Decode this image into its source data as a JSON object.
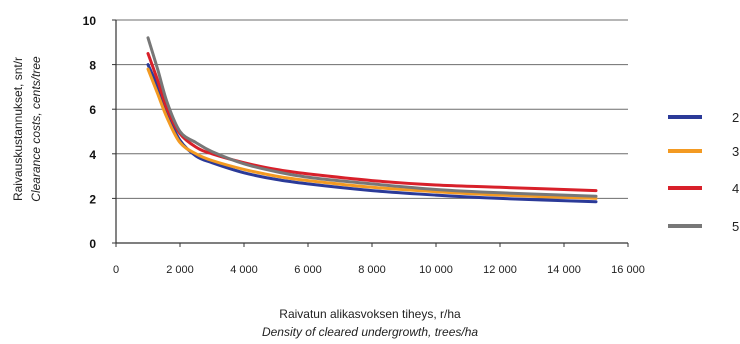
{
  "chart_data": {
    "type": "line",
    "xlabel": "Raivatun alikasvoksen tiheys, r/ha",
    "xlabel_en": "Density of cleared undergrowth, trees/ha",
    "ylabel": "Raivauskustannukset, snt/r",
    "ylabel_en": "Clearance costs, cents/tree",
    "xlim": [
      0,
      16000
    ],
    "ylim": [
      0,
      10
    ],
    "x_ticks": [
      "0",
      "2 000",
      "4 000",
      "6 000",
      "8 000",
      "10 000",
      "12 000",
      "14 000",
      "16 000"
    ],
    "y_ticks": [
      "0",
      "2",
      "4",
      "6",
      "8",
      "10"
    ],
    "grid": "horizontal",
    "legend_position": "right",
    "series": [
      {
        "name": "2",
        "color": "#2b3a98",
        "x": [
          1000,
          1300,
          1600,
          2000,
          2500,
          3000,
          4000,
          5000,
          6000,
          8000,
          10000,
          12000,
          15000
        ],
        "y": [
          8.0,
          7.0,
          5.8,
          4.6,
          3.9,
          3.6,
          3.15,
          2.85,
          2.65,
          2.35,
          2.15,
          2.0,
          1.85
        ]
      },
      {
        "name": "3",
        "color": "#f39a22",
        "x": [
          1000,
          1300,
          1600,
          2000,
          2500,
          3000,
          4000,
          5000,
          6000,
          8000,
          10000,
          12000,
          15000
        ],
        "y": [
          7.8,
          6.7,
          5.6,
          4.5,
          4.0,
          3.7,
          3.3,
          3.0,
          2.8,
          2.5,
          2.3,
          2.15,
          2.0
        ]
      },
      {
        "name": "4",
        "color": "#d8202a",
        "x": [
          1000,
          1300,
          1600,
          2000,
          2500,
          3000,
          4000,
          5000,
          6000,
          8000,
          10000,
          12000,
          15000
        ],
        "y": [
          8.5,
          7.3,
          6.0,
          4.9,
          4.3,
          4.0,
          3.6,
          3.3,
          3.1,
          2.8,
          2.6,
          2.5,
          2.35
        ]
      },
      {
        "name": "5",
        "color": "#777777",
        "x": [
          1000,
          1300,
          1600,
          2000,
          2500,
          3000,
          4000,
          5000,
          6000,
          8000,
          10000,
          12000,
          15000
        ],
        "y": [
          9.2,
          7.8,
          6.3,
          5.0,
          4.5,
          4.1,
          3.55,
          3.2,
          2.95,
          2.65,
          2.4,
          2.25,
          2.1
        ]
      }
    ]
  }
}
